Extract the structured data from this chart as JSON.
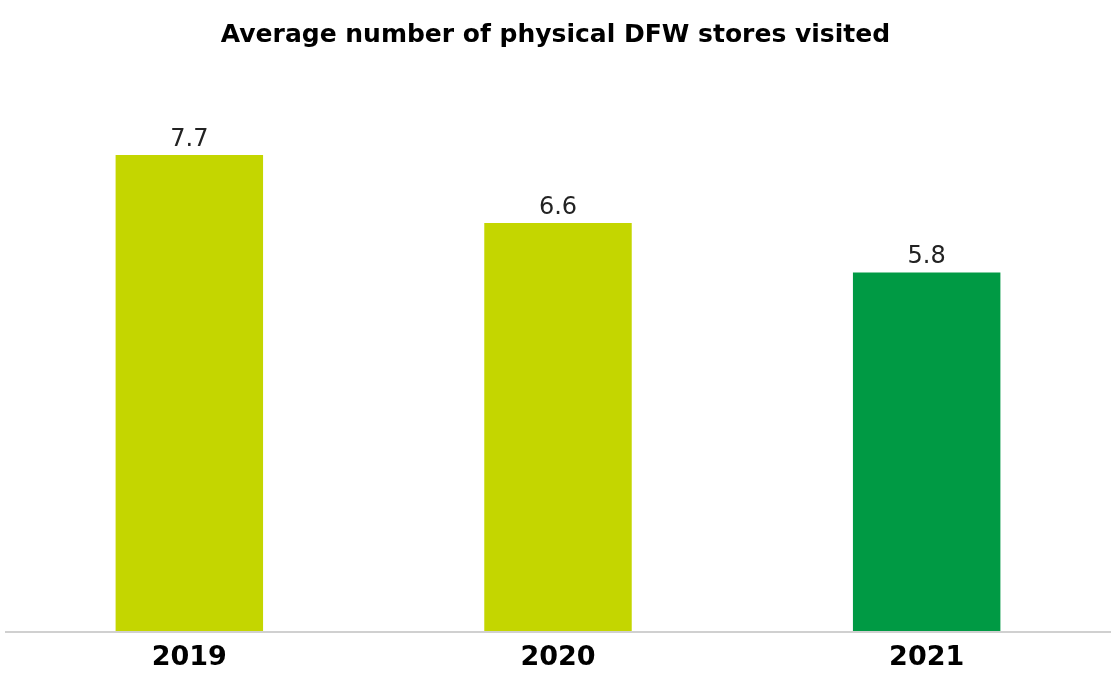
{
  "chart_data": {
    "type": "bar",
    "title": "Average number of physical DFW stores visited",
    "categories": [
      "2019",
      "2020",
      "2021"
    ],
    "values": [
      7.7,
      6.6,
      5.8
    ],
    "colors": [
      "#c4d600",
      "#c4d600",
      "#009a44"
    ],
    "data_labels": true
  }
}
